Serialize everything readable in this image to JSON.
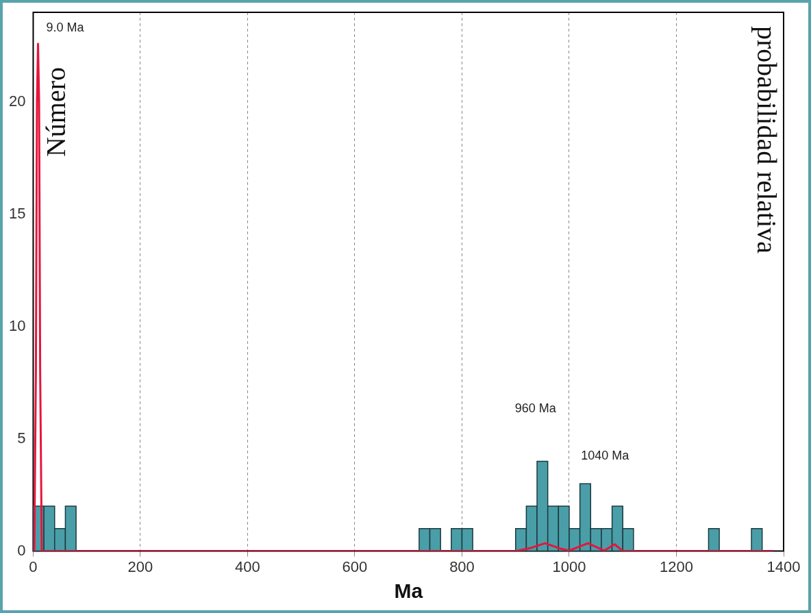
{
  "chart_data": {
    "type": "histogram",
    "xlabel": "Ma",
    "ylabel": "Número",
    "y2label": "probabilidad relativa",
    "bins": [
      0,
      20,
      40,
      60,
      80,
      720,
      740,
      760,
      780,
      800,
      820,
      900,
      920,
      940,
      960,
      980,
      1000,
      1020,
      1040,
      1060,
      1080,
      1100,
      1120,
      1260,
      1280,
      1340,
      1360
    ],
    "values": [
      2,
      2,
      1,
      2,
      0,
      1,
      1,
      0,
      1,
      1,
      0,
      1,
      2,
      4,
      2,
      2,
      1,
      3,
      1,
      1,
      2,
      1,
      0,
      1,
      0,
      1
    ],
    "color": "#4a9ea8",
    "series": [
      {
        "type": "line",
        "color": "#e8143c",
        "x": [
          1,
          2,
          5,
          7,
          9,
          11,
          13,
          16,
          900,
          930,
          955,
          985,
          1000,
          1035,
          1065,
          1085,
          1100,
          1380
        ],
        "values": [
          0,
          0,
          8,
          20,
          22.6,
          20,
          8,
          0,
          0,
          0.15,
          0.35,
          0.1,
          0.02,
          0.35,
          0.02,
          0.3,
          0,
          0
        ]
      }
    ],
    "marker": "none",
    "xlim": [
      0,
      1400
    ],
    "xticks": [
      0,
      200,
      400,
      600,
      800,
      1000,
      1200,
      1400
    ],
    "ylim": [
      0,
      24
    ],
    "yticks": [
      0,
      5,
      10,
      15,
      20
    ],
    "grid": "x",
    "annotations": [
      {
        "text": "9.0 Ma",
        "x": 9,
        "y": 22.6
      },
      "960 Ma",
      "1040 Ma"
    ]
  }
}
